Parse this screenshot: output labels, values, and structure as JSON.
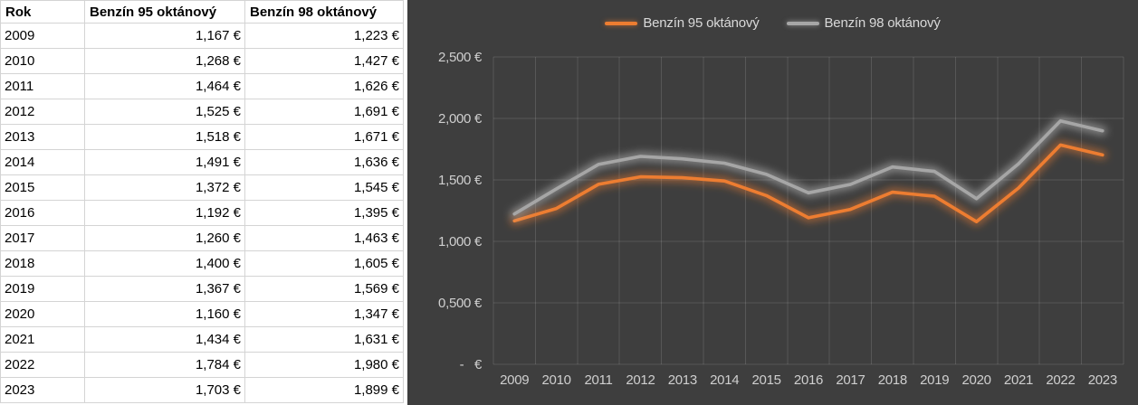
{
  "table": {
    "headers": [
      "Rok",
      "Benzín 95 oktánový",
      "Benzín 98 oktánový"
    ],
    "rows": [
      [
        "2009",
        "1,167 €",
        "1,223 €"
      ],
      [
        "2010",
        "1,268 €",
        "1,427 €"
      ],
      [
        "2011",
        "1,464 €",
        "1,626 €"
      ],
      [
        "2012",
        "1,525 €",
        "1,691 €"
      ],
      [
        "2013",
        "1,518 €",
        "1,671 €"
      ],
      [
        "2014",
        "1,491 €",
        "1,636 €"
      ],
      [
        "2015",
        "1,372 €",
        "1,545 €"
      ],
      [
        "2016",
        "1,192 €",
        "1,395 €"
      ],
      [
        "2017",
        "1,260 €",
        "1,463 €"
      ],
      [
        "2018",
        "1,400 €",
        "1,605 €"
      ],
      [
        "2019",
        "1,367 €",
        "1,569 €"
      ],
      [
        "2020",
        "1,160 €",
        "1,347 €"
      ],
      [
        "2021",
        "1,434 €",
        "1,631 €"
      ],
      [
        "2022",
        "1,784 €",
        "1,980 €"
      ],
      [
        "2023",
        "1,703 €",
        "1,899 €"
      ]
    ]
  },
  "chart_data": {
    "type": "line",
    "title": "",
    "categories": [
      "2009",
      "2010",
      "2011",
      "2012",
      "2013",
      "2014",
      "2015",
      "2016",
      "2017",
      "2018",
      "2019",
      "2020",
      "2021",
      "2022",
      "2023"
    ],
    "series": [
      {
        "name": "Benzín 95 oktánový",
        "color": "#ED7D31",
        "values": [
          1.167,
          1.268,
          1.464,
          1.525,
          1.518,
          1.491,
          1.372,
          1.192,
          1.26,
          1.4,
          1.367,
          1.16,
          1.434,
          1.784,
          1.703
        ]
      },
      {
        "name": "Benzín 98 oktánový",
        "color": "#A6A6A6",
        "values": [
          1.223,
          1.427,
          1.626,
          1.691,
          1.671,
          1.636,
          1.545,
          1.395,
          1.463,
          1.605,
          1.569,
          1.347,
          1.631,
          1.98,
          1.899
        ]
      }
    ],
    "ylim": [
      0,
      2.5
    ],
    "y_ticks": [
      {
        "value": 2.5,
        "label": "2,500 €"
      },
      {
        "value": 2.0,
        "label": "2,000 €"
      },
      {
        "value": 1.5,
        "label": "1,500 €"
      },
      {
        "value": 1.0,
        "label": "1,000 €"
      },
      {
        "value": 0.5,
        "label": "0,500 €"
      },
      {
        "value": 0.0,
        "label": "-   €"
      }
    ],
    "legend_position": "top",
    "grid": true,
    "background": "#3E3E3E",
    "grid_color": "rgba(255,255,255,0.13)",
    "tick_color": "#CFCFCF",
    "xlabel": "",
    "ylabel": ""
  }
}
